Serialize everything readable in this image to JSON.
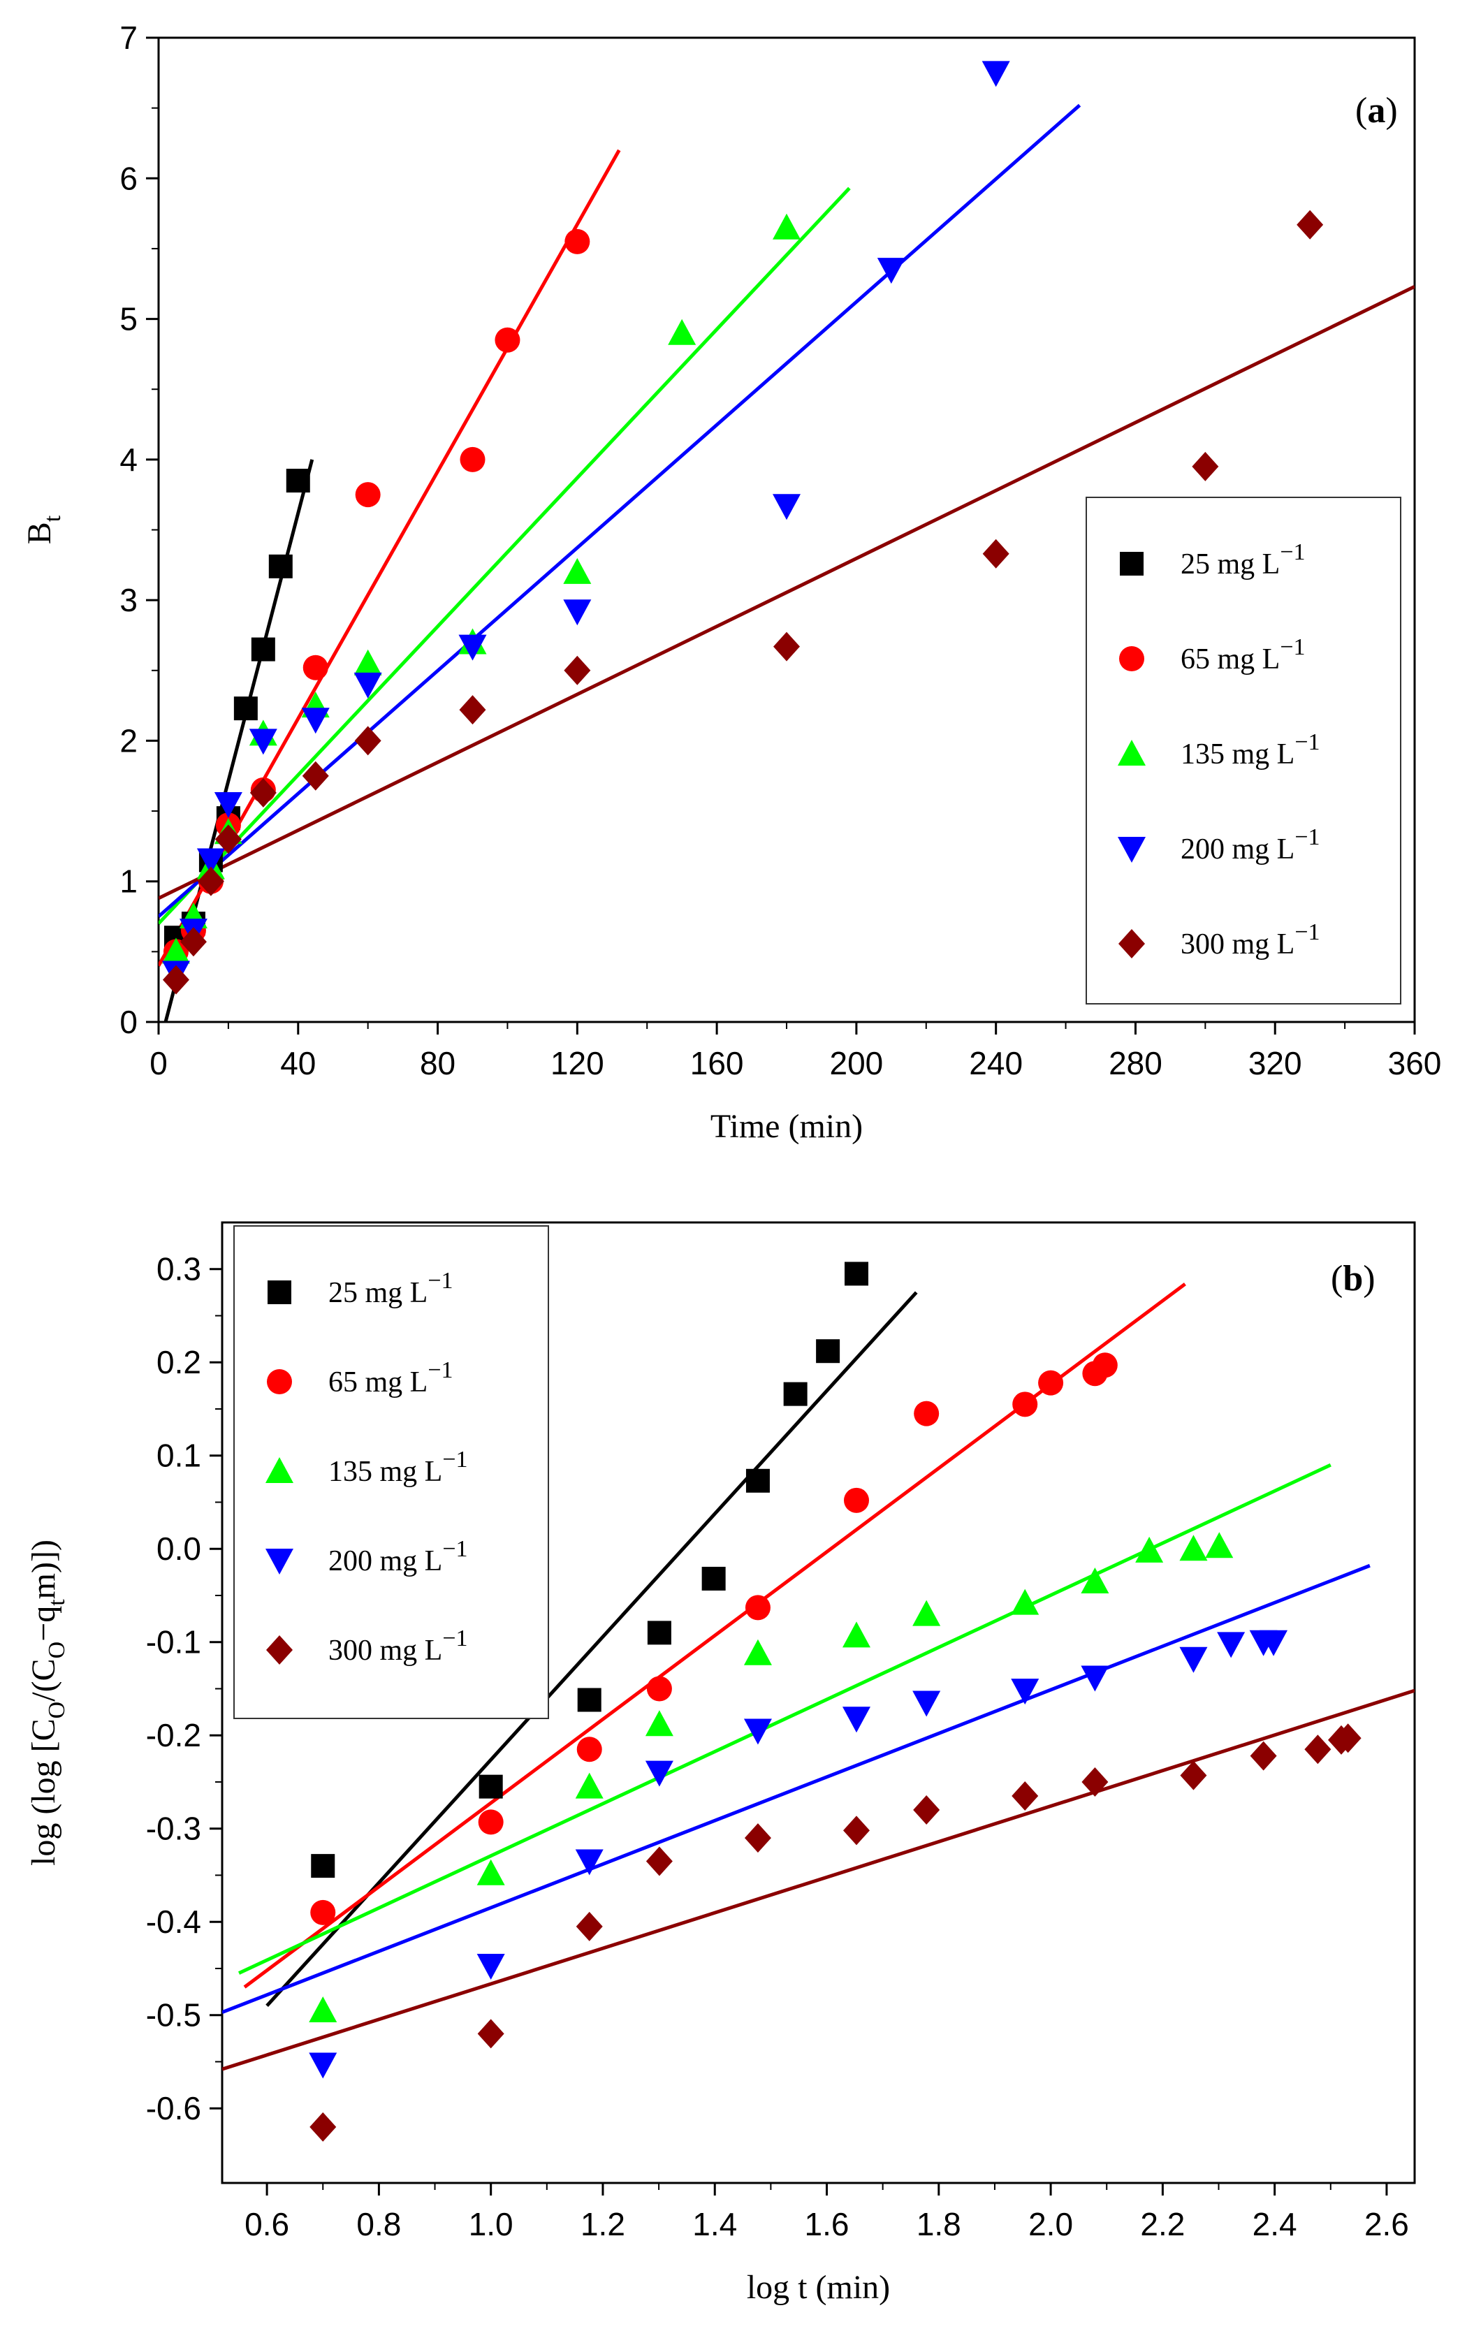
{
  "chart_data": [
    {
      "type": "scatter",
      "panel_label": "a",
      "title": "",
      "xlabel": "Time (min)",
      "ylabel_main": "B",
      "ylabel_sub": "t",
      "xlim": [
        0,
        360
      ],
      "ylim": [
        0,
        7
      ],
      "xticks": [
        0,
        40,
        80,
        120,
        160,
        200,
        240,
        280,
        320,
        360
      ],
      "yticks": [
        0,
        1,
        2,
        3,
        4,
        5,
        6,
        7
      ],
      "legend_position": "right-middle",
      "series": [
        {
          "name": "25 mg L",
          "sup": "−1",
          "color": "#000000",
          "marker": "square",
          "x": [
            5,
            10,
            15,
            20,
            25,
            30,
            35,
            40
          ],
          "y": [
            0.6,
            0.7,
            1.15,
            1.45,
            2.23,
            2.65,
            3.24,
            3.85
          ],
          "fit_x": [
            2,
            44
          ],
          "fit_y": [
            0.0,
            4.0
          ]
        },
        {
          "name": "65 mg L",
          "sup": "−1",
          "color": "#ff0000",
          "marker": "circle",
          "x": [
            5,
            10,
            15,
            20,
            30,
            45,
            60,
            90,
            100,
            120
          ],
          "y": [
            0.5,
            0.65,
            1.0,
            1.4,
            1.65,
            2.52,
            3.75,
            4.0,
            4.85,
            5.55
          ],
          "fit_x": [
            0,
            132
          ],
          "fit_y": [
            0.4,
            6.2
          ]
        },
        {
          "name": "135 mg L",
          "sup": "−1",
          "color": "#00ff00",
          "marker": "triangle-up",
          "x": [
            5,
            10,
            15,
            20,
            30,
            45,
            60,
            90,
            120,
            150,
            180
          ],
          "y": [
            0.5,
            0.75,
            1.1,
            1.35,
            2.05,
            2.25,
            2.55,
            2.7,
            3.2,
            4.9,
            5.65
          ],
          "fit_x": [
            0,
            198
          ],
          "fit_y": [
            0.7,
            5.93
          ]
        },
        {
          "name": "200 mg L",
          "sup": "−1",
          "color": "#0000ff",
          "marker": "triangle-down",
          "x": [
            5,
            10,
            15,
            20,
            30,
            45,
            60,
            90,
            120,
            180,
            210,
            240
          ],
          "y": [
            0.35,
            0.65,
            1.15,
            1.55,
            2.0,
            2.15,
            2.4,
            2.67,
            2.92,
            3.67,
            5.35,
            6.75
          ],
          "fit_x": [
            0,
            264
          ],
          "fit_y": [
            0.75,
            6.52
          ]
        },
        {
          "name": "300 mg L",
          "sup": "−1",
          "color": "#8b0000",
          "marker": "diamond",
          "x": [
            5,
            10,
            15,
            20,
            30,
            45,
            60,
            90,
            120,
            180,
            240,
            300,
            330
          ],
          "y": [
            0.3,
            0.57,
            1.0,
            1.3,
            1.63,
            1.75,
            2.0,
            2.22,
            2.5,
            2.67,
            3.33,
            3.95,
            5.67
          ],
          "fit_x": [
            0,
            360
          ],
          "fit_y": [
            0.88,
            5.23
          ]
        }
      ]
    },
    {
      "type": "scatter",
      "panel_label": "b",
      "title": "",
      "xlabel": "log t (min)",
      "ylabel_pre": "log (log [C",
      "ylabel_sub1": "O",
      "ylabel_mid": "/(C",
      "ylabel_sub2": "O",
      "ylabel_mid2": "−q",
      "ylabel_sub3": "t",
      "ylabel_post": "m)])",
      "xlim": [
        0.52,
        2.65
      ],
      "ylim": [
        -0.68,
        0.35
      ],
      "xticks": [
        0.6,
        0.8,
        1.0,
        1.2,
        1.4,
        1.6,
        1.8,
        2.0,
        2.2,
        2.4,
        2.6
      ],
      "xtick_labels": [
        "0.6",
        "0.8",
        "1.0",
        "1.2",
        "1.4",
        "1.6",
        "1.8",
        "2.0",
        "2.2",
        "2.4",
        "2.6"
      ],
      "yticks": [
        -0.6,
        -0.5,
        -0.4,
        -0.3,
        -0.2,
        -0.1,
        0.0,
        0.1,
        0.2,
        0.3
      ],
      "ytick_labels": [
        "-0.6",
        "-0.5",
        "-0.4",
        "-0.3",
        "-0.2",
        "-0.1",
        "0.0",
        "0.1",
        "0.2",
        "0.3"
      ],
      "legend_position": "top-left",
      "series": [
        {
          "name": "25 mg L",
          "sup": "−1",
          "color": "#000000",
          "marker": "square",
          "x": [
            0.7,
            1.0,
            1.176,
            1.301,
            1.398,
            1.477,
            1.544,
            1.602,
            1.653
          ],
          "y": [
            -0.34,
            -0.255,
            -0.162,
            -0.09,
            -0.032,
            0.073,
            0.166,
            0.212,
            0.295
          ],
          "fit_x": [
            0.6,
            1.76
          ],
          "fit_y": [
            -0.49,
            0.275
          ]
        },
        {
          "name": "65 mg L",
          "sup": "−1",
          "color": "#ff0000",
          "marker": "circle",
          "x": [
            0.7,
            1.0,
            1.176,
            1.301,
            1.477,
            1.653,
            1.778,
            1.954,
            2.0,
            2.079,
            2.097
          ],
          "y": [
            -0.39,
            -0.293,
            -0.215,
            -0.15,
            -0.063,
            0.052,
            0.145,
            0.155,
            0.178,
            0.188,
            0.197
          ],
          "fit_x": [
            0.56,
            2.24
          ],
          "fit_y": [
            -0.47,
            0.284
          ]
        },
        {
          "name": "135 mg L",
          "sup": "−1",
          "color": "#00ff00",
          "marker": "triangle-up",
          "x": [
            0.7,
            1.0,
            1.176,
            1.301,
            1.477,
            1.653,
            1.778,
            1.954,
            2.079,
            2.176,
            2.255,
            2.301
          ],
          "y": [
            -0.495,
            -0.348,
            -0.255,
            -0.188,
            -0.112,
            -0.093,
            -0.07,
            -0.058,
            -0.035,
            -0.002,
            0.0,
            0.003
          ],
          "fit_x": [
            0.55,
            2.5
          ],
          "fit_y": [
            -0.455,
            0.09
          ]
        },
        {
          "name": "200 mg L",
          "sup": "−1",
          "color": "#0000ff",
          "marker": "triangle-down",
          "x": [
            0.7,
            1.0,
            1.176,
            1.301,
            1.477,
            1.653,
            1.778,
            1.954,
            2.079,
            2.255,
            2.322,
            2.38,
            2.398
          ],
          "y": [
            -0.553,
            -0.447,
            -0.335,
            -0.24,
            -0.195,
            -0.182,
            -0.165,
            -0.152,
            -0.138,
            -0.118,
            -0.102,
            -0.1,
            -0.1
          ],
          "fit_x": [
            0.52,
            2.57
          ],
          "fit_y": [
            -0.497,
            -0.018
          ]
        },
        {
          "name": "300 mg L",
          "sup": "−1",
          "color": "#8b0000",
          "marker": "diamond",
          "x": [
            0.7,
            1.0,
            1.176,
            1.301,
            1.477,
            1.653,
            1.778,
            1.954,
            2.079,
            2.255,
            2.38,
            2.477,
            2.519,
            2.531
          ],
          "y": [
            -0.62,
            -0.52,
            -0.405,
            -0.335,
            -0.31,
            -0.302,
            -0.28,
            -0.265,
            -0.25,
            -0.243,
            -0.222,
            -0.215,
            -0.205,
            -0.203
          ],
          "fit_x": [
            0.52,
            2.65
          ],
          "fit_y": [
            -0.558,
            -0.152
          ]
        }
      ]
    }
  ]
}
